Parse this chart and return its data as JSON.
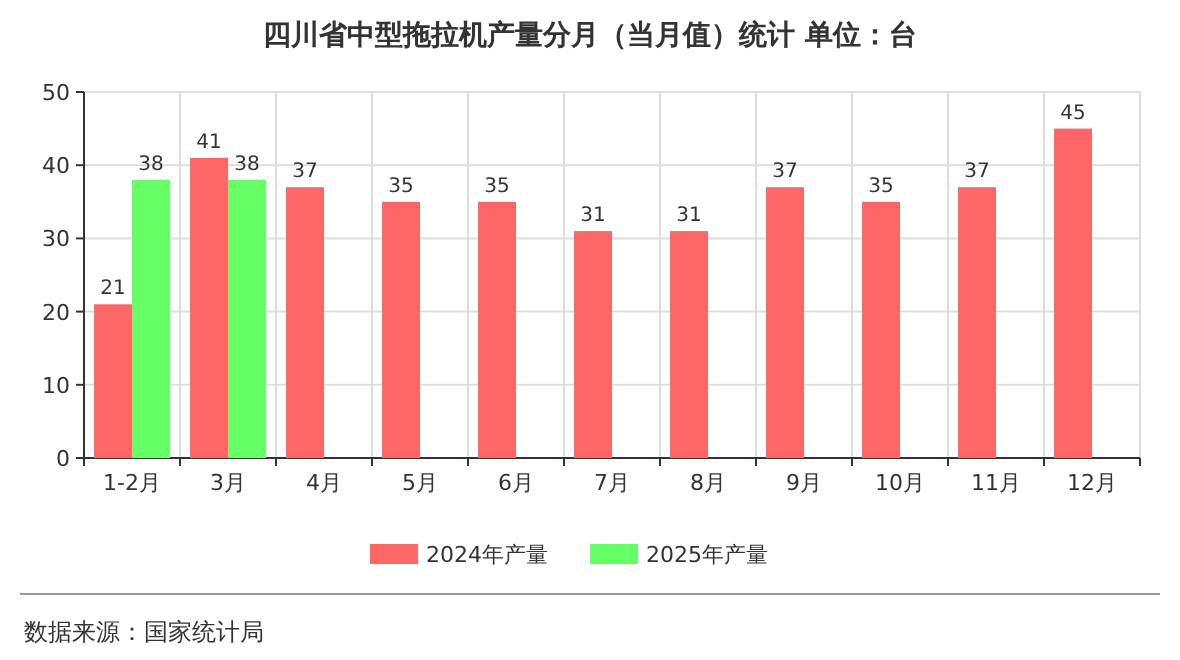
{
  "chart_data": {
    "type": "bar",
    "title": "四川省中型拖拉机产量分月（当月值）统计 单位：台",
    "categories": [
      "1-2月",
      "3月",
      "4月",
      "5月",
      "6月",
      "7月",
      "8月",
      "9月",
      "10月",
      "11月",
      "12月"
    ],
    "series": [
      {
        "name": "2024年产量",
        "color": "#ff6666",
        "values": [
          21,
          41,
          37,
          35,
          35,
          31,
          31,
          37,
          35,
          37,
          45
        ]
      },
      {
        "name": "2025年产量",
        "color": "#66ff66",
        "values": [
          38,
          38,
          null,
          null,
          null,
          null,
          null,
          null,
          null,
          null,
          null
        ]
      }
    ],
    "ylim": [
      0,
      50
    ],
    "yticks": [
      0,
      10,
      20,
      30,
      40,
      50
    ],
    "grid": true,
    "legend": "bottom",
    "data_labels": true,
    "annotations": [
      "数据来源：国家统计局"
    ]
  }
}
